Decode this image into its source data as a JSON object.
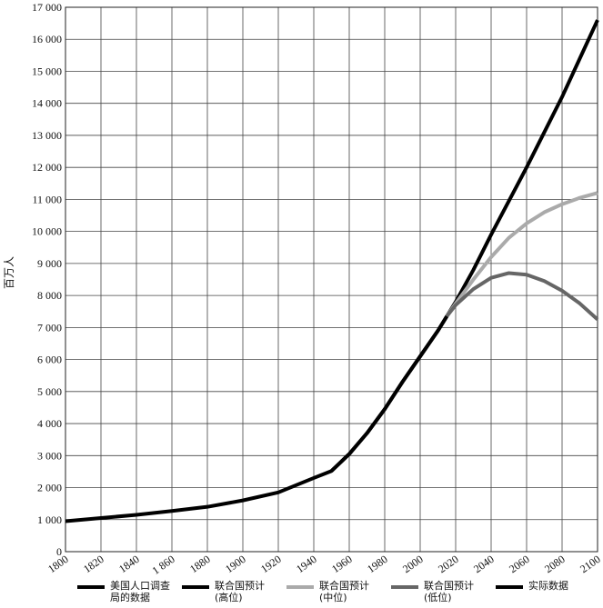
{
  "chart_data": {
    "type": "line",
    "y_label": "百万人",
    "x": [
      1800,
      1820,
      1840,
      1860,
      1880,
      1900,
      1920,
      1940,
      1950,
      1960,
      1970,
      1980,
      1990,
      2000,
      2010,
      2015,
      2020,
      2030,
      2040,
      2050,
      2060,
      2070,
      2080,
      2090,
      2100
    ],
    "series": [
      {
        "name": "美国人口调查局的数据",
        "color": "#000000",
        "values": [
          null,
          null,
          null,
          null,
          null,
          null,
          null,
          null,
          2520,
          3050,
          3700,
          4450,
          5300,
          6100,
          6900,
          7350,
          null,
          null,
          null,
          null,
          null,
          null,
          null,
          null,
          null
        ]
      },
      {
        "name": "联合国预计(高位)",
        "color": "#000000",
        "values": [
          null,
          null,
          null,
          null,
          null,
          null,
          null,
          null,
          null,
          null,
          null,
          null,
          null,
          null,
          null,
          7350,
          7800,
          8800,
          9900,
          10950,
          12000,
          13100,
          14200,
          15400,
          16600
        ]
      },
      {
        "name": "联合国预计(中位)",
        "color": "#aaaaaa",
        "values": [
          null,
          null,
          null,
          null,
          null,
          null,
          null,
          null,
          null,
          null,
          null,
          null,
          null,
          null,
          null,
          7350,
          7750,
          8500,
          9200,
          9800,
          10250,
          10600,
          10850,
          11050,
          11200
        ]
      },
      {
        "name": "联合国预计(低位)",
        "color": "#666666",
        "values": [
          null,
          null,
          null,
          null,
          null,
          null,
          null,
          null,
          null,
          null,
          null,
          null,
          null,
          null,
          null,
          7350,
          7700,
          8200,
          8550,
          8700,
          8650,
          8450,
          8150,
          7750,
          7250
        ]
      },
      {
        "name": "实际数据",
        "color": "#000000",
        "values": [
          950,
          1050,
          1150,
          1270,
          1400,
          1600,
          1850,
          2300,
          2520,
          3050,
          3700,
          4450,
          5300,
          6100,
          6900,
          7350,
          null,
          null,
          null,
          null,
          null,
          null,
          null,
          null,
          null
        ]
      }
    ],
    "xlim": [
      1800,
      2100
    ],
    "xticks": [
      1800,
      1820,
      1840,
      {
        "value": 1860,
        "label": "1 860"
      },
      1880,
      1900,
      1920,
      1940,
      1960,
      1980,
      2000,
      2020,
      2040,
      2060,
      2080,
      2100
    ],
    "ylim": [
      0,
      17000
    ],
    "yticks": [
      0,
      {
        "value": 1000,
        "label": "1 000"
      },
      {
        "value": 2000,
        "label": "2 000"
      },
      {
        "value": 3000,
        "label": "3 000"
      },
      {
        "value": 4000,
        "label": "4 000"
      },
      {
        "value": 5000,
        "label": "5 000"
      },
      {
        "value": 6000,
        "label": "6 000"
      },
      {
        "value": 7000,
        "label": "7 000"
      },
      {
        "value": 8000,
        "label": "8 000"
      },
      {
        "value": 9000,
        "label": "9 000"
      },
      {
        "value": 10000,
        "label": "10 000"
      },
      {
        "value": 11000,
        "label": "11 000"
      },
      {
        "value": 12000,
        "label": "12 000"
      },
      {
        "value": 13000,
        "label": "13 000"
      },
      {
        "value": 14000,
        "label": "14 000"
      },
      {
        "value": 15000,
        "label": "15 000"
      },
      {
        "value": 16000,
        "label": "16 000"
      },
      {
        "value": 17000,
        "label": "17 000"
      }
    ],
    "grid": true,
    "legend": "bottom"
  }
}
